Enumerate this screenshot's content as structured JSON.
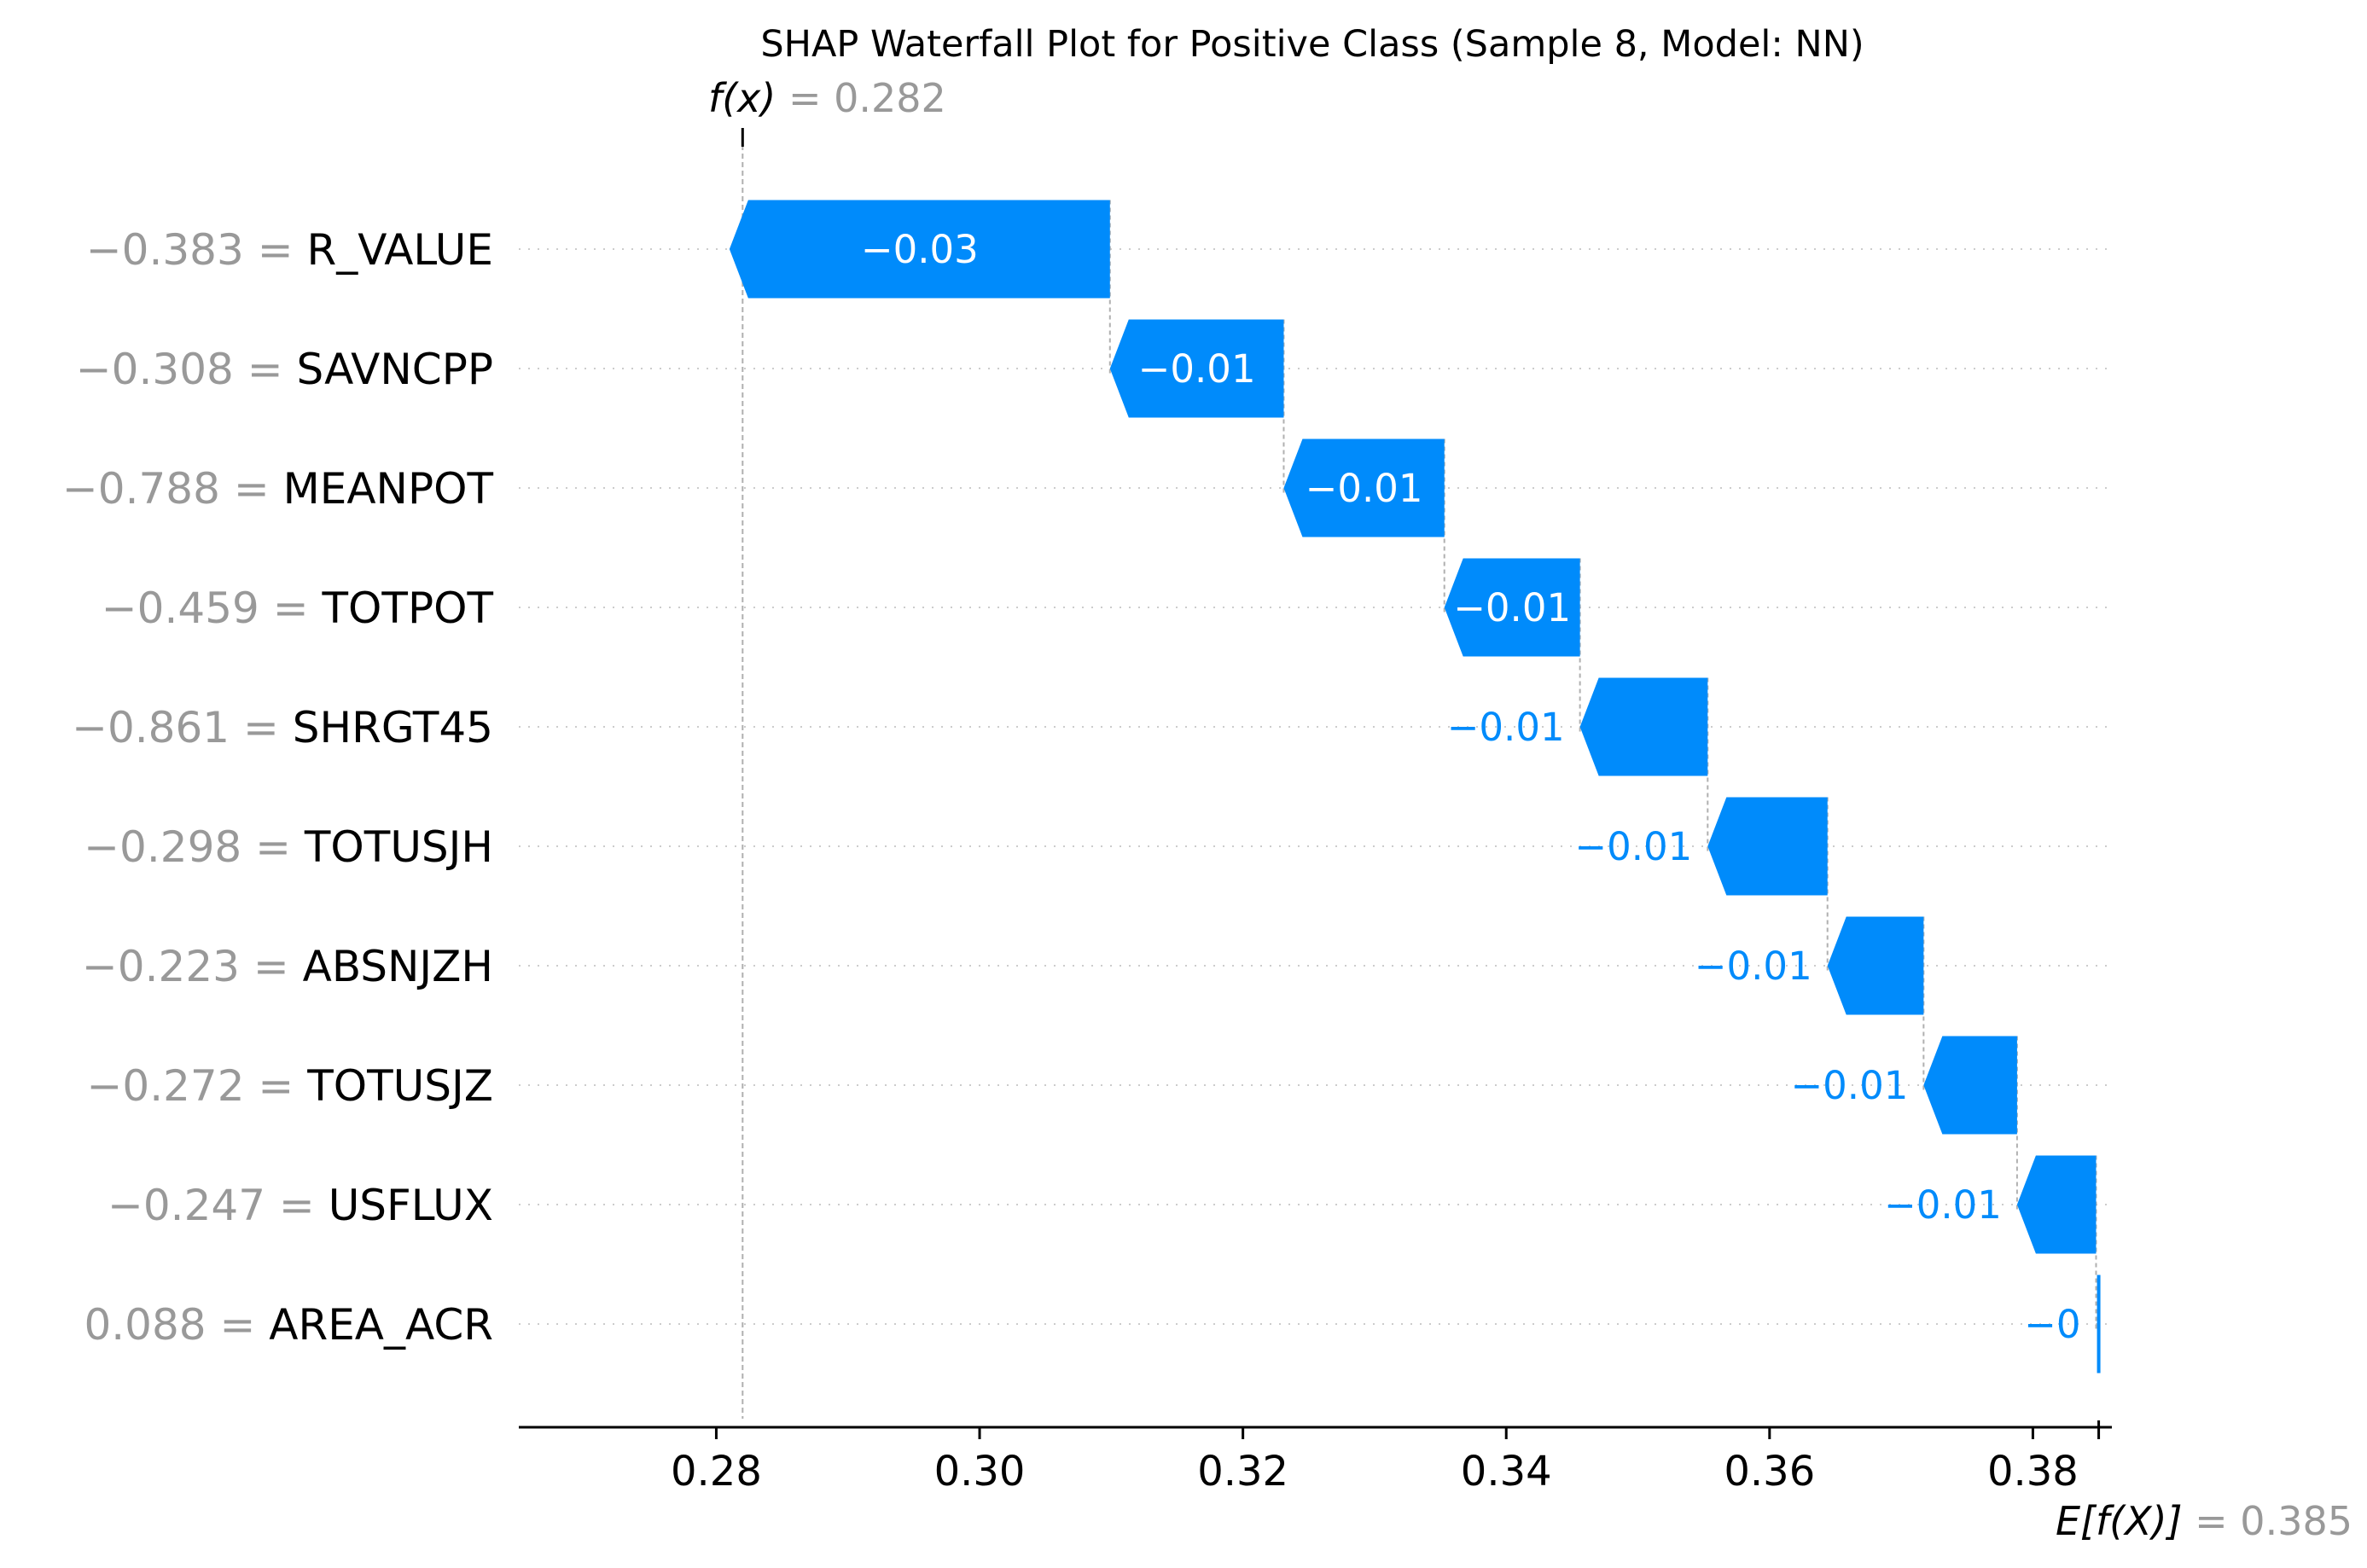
{
  "chart_data": {
    "type": "waterfall",
    "title": "SHAP Waterfall Plot for Positive Class (Sample 8, Model: NN)",
    "fx_symbol": "f(x)",
    "fx_value": 0.282,
    "fx_label": "= 0.282",
    "base_symbol": "E[f(X)]",
    "base_value": 0.385,
    "base_label": "= 0.385",
    "xlim": [
      0.265,
      0.386
    ],
    "x_ticks": [
      0.28,
      0.3,
      0.32,
      0.34,
      0.36,
      0.38
    ],
    "x_tick_labels": [
      "0.28",
      "0.30",
      "0.32",
      "0.34",
      "0.36",
      "0.38"
    ],
    "colors": {
      "negative": "#008bfb",
      "positive": "#ff0051",
      "feature_value": "#999999",
      "grid": "#cccccc",
      "axis": "#000000"
    },
    "features": [
      {
        "name": "R_VALUE",
        "value": "−0.383",
        "shap": -0.0289,
        "label": "−0.03"
      },
      {
        "name": "SAVNCPP",
        "value": "−0.308",
        "shap": -0.0132,
        "label": "−0.01"
      },
      {
        "name": "MEANPOT",
        "value": "−0.788",
        "shap": -0.0122,
        "label": "−0.01"
      },
      {
        "name": "TOTPOT",
        "value": "−0.459",
        "shap": -0.0103,
        "label": "−0.01"
      },
      {
        "name": "SHRGT45",
        "value": "−0.861",
        "shap": -0.0097,
        "label": "−0.01"
      },
      {
        "name": "TOTUSJH",
        "value": "−0.298",
        "shap": -0.0091,
        "label": "−0.01"
      },
      {
        "name": "ABSNJZH",
        "value": "−0.223",
        "shap": -0.0073,
        "label": "−0.01"
      },
      {
        "name": "TOTUSJZ",
        "value": "−0.272",
        "shap": -0.0071,
        "label": "−0.01"
      },
      {
        "name": "USFLUX",
        "value": "−0.247",
        "shap": -0.006,
        "label": "−0.01"
      },
      {
        "name": "AREA_ACR",
        "value": "0.088",
        "shap": -0.0002,
        "label": "−0"
      }
    ]
  }
}
